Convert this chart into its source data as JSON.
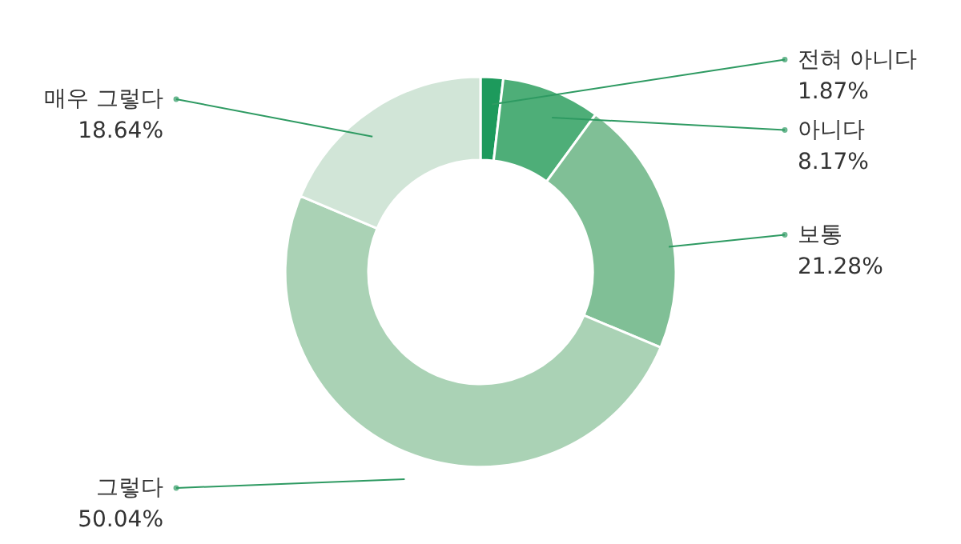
{
  "chart_data": {
    "type": "donut",
    "categories": [
      "전혀 아니다",
      "아니다",
      "보통",
      "그렇다",
      "매우 그렇다"
    ],
    "values": [
      1.87,
      8.17,
      21.28,
      50.04,
      18.64
    ],
    "value_labels": [
      "1.87%",
      "8.17%",
      "21.28%",
      "50.04%",
      "18.64%"
    ],
    "colors": [
      "#1d9a5c",
      "#4eae78",
      "#80bf96",
      "#aad2b5",
      "#d1e5d7"
    ]
  }
}
